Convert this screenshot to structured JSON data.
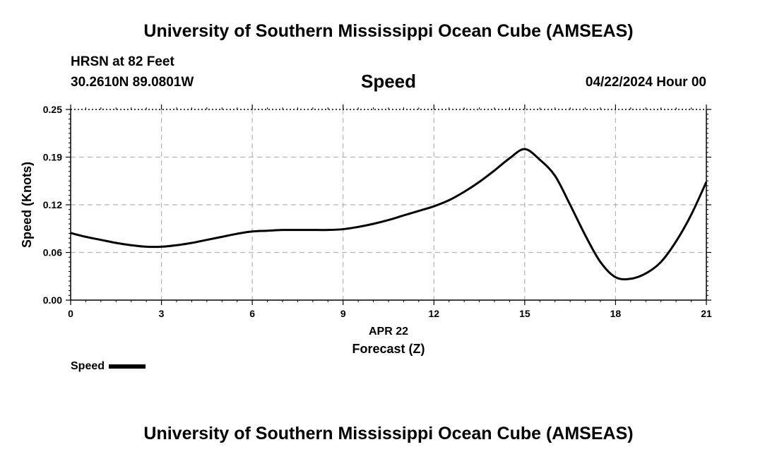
{
  "header": {
    "title": "University of Southern Mississippi Ocean Cube (AMSEAS)",
    "station": "HRSN at 82 Feet",
    "coords": "30.2610N  89.0801W",
    "datetime": "04/22/2024 Hour 00"
  },
  "footer": {
    "title": "University of Southern Mississippi Ocean Cube (AMSEAS)"
  },
  "legend": {
    "label": "Speed"
  },
  "colors": {
    "line": "#000000",
    "grid": "#b4b4b4",
    "background": "#ffffff"
  },
  "chart_data": {
    "type": "line",
    "title": "Speed",
    "ylabel": "Speed (Knots)",
    "xlabel": "Forecast (Z)",
    "xlabel_date": "APR 22",
    "xlim": [
      0,
      21
    ],
    "ylim": [
      0,
      0.25
    ],
    "xticks": [
      0,
      3,
      6,
      9,
      12,
      15,
      18,
      21
    ],
    "yticks": [
      0.0,
      0.06,
      0.12,
      0.19,
      0.25
    ],
    "ytick_labels": [
      "0.00",
      "0.06",
      "0.12",
      "0.19",
      "0.25"
    ],
    "grid": true,
    "series": [
      {
        "name": "Speed",
        "x": [
          0,
          0.5,
          1,
          1.5,
          2,
          2.5,
          3,
          3.5,
          4,
          4.5,
          5,
          5.5,
          6,
          6.5,
          7,
          7.5,
          8,
          8.5,
          9,
          9.5,
          10,
          10.5,
          11,
          11.5,
          12,
          12.5,
          13,
          13.5,
          14,
          14.5,
          15,
          15.5,
          16,
          16.5,
          17,
          17.5,
          18,
          18.5,
          19,
          19.5,
          20,
          20.5,
          21
        ],
        "values": [
          0.088,
          0.083,
          0.079,
          0.075,
          0.072,
          0.07,
          0.07,
          0.072,
          0.075,
          0.079,
          0.083,
          0.087,
          0.09,
          0.091,
          0.092,
          0.092,
          0.092,
          0.092,
          0.093,
          0.096,
          0.1,
          0.105,
          0.111,
          0.117,
          0.123,
          0.131,
          0.142,
          0.155,
          0.17,
          0.186,
          0.198,
          0.184,
          0.163,
          0.125,
          0.085,
          0.05,
          0.03,
          0.028,
          0.035,
          0.05,
          0.077,
          0.112,
          0.155
        ]
      }
    ]
  }
}
